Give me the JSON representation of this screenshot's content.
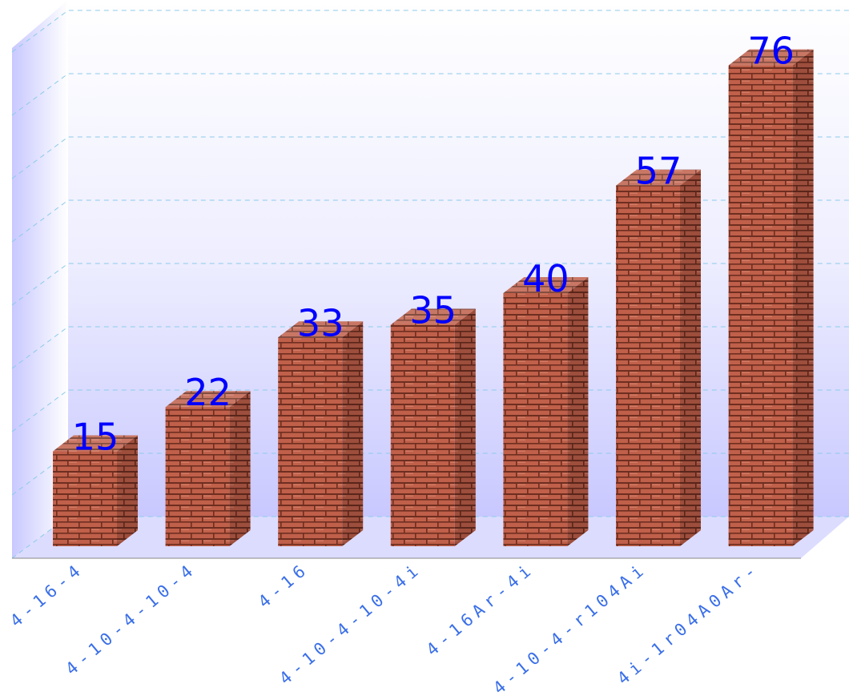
{
  "chart_data": {
    "type": "bar3d",
    "categories": [
      "4-16-4",
      "4-10-4-10-4",
      "4-16",
      "4-10-4-10-4i",
      "4-16Ar-4i",
      "4-10-4-r104Ai",
      "4i-1r04A0Ar-"
    ],
    "values": [
      15,
      22,
      33,
      35,
      40,
      57,
      76
    ],
    "ylim": [
      0,
      80
    ],
    "yticks": [
      0,
      10,
      20,
      30,
      40,
      50,
      60,
      70,
      80
    ],
    "grid": true,
    "color": "#c0604a",
    "label_color": "#0000ff",
    "category_color": "#3a6fe8"
  }
}
